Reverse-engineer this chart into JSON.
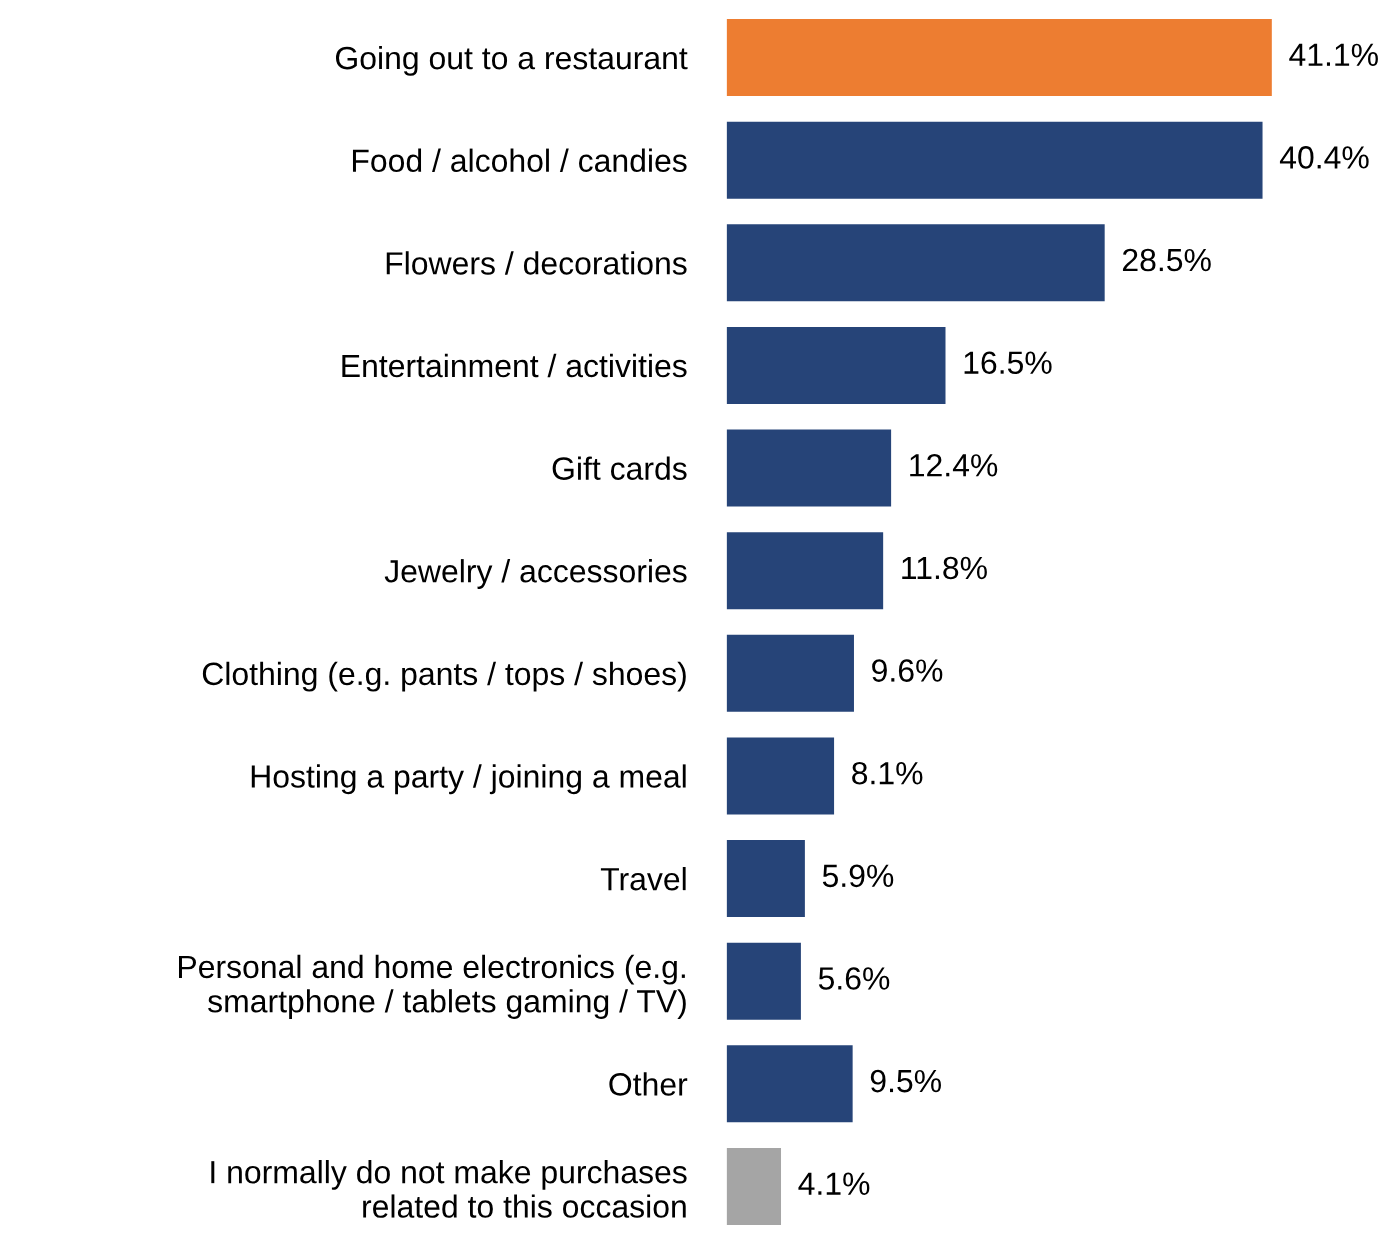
{
  "chart_data": {
    "type": "bar",
    "orientation": "horizontal",
    "categories": [
      "Going out to a restaurant",
      "Food / alcohol / candies",
      "Flowers / decorations",
      "Entertainment / activities",
      "Gift cards",
      "Jewelry / accessories",
      "Clothing (e.g. pants / tops / shoes)",
      "Hosting a party / joining a meal",
      "Travel",
      "Personal and home electronics (e.g.\nsmartphone / tablets gaming / TV)",
      "Other",
      "I normally do not make purchases\nrelated to this occasion"
    ],
    "values": [
      41.1,
      40.4,
      28.5,
      16.5,
      12.4,
      11.8,
      9.6,
      8.1,
      5.9,
      5.6,
      9.5,
      4.1
    ],
    "value_labels": [
      "41.1%",
      "40.4%",
      "28.5%",
      "16.5%",
      "12.4%",
      "11.8%",
      "9.6%",
      "8.1%",
      "5.9%",
      "5.6%",
      "9.5%",
      "4.1%"
    ],
    "colors": [
      "#ed7d31",
      "#264478",
      "#264478",
      "#264478",
      "#264478",
      "#264478",
      "#264478",
      "#264478",
      "#264478",
      "#264478",
      "#264478",
      "#a5a5a5"
    ],
    "grid": false,
    "legend": false
  }
}
